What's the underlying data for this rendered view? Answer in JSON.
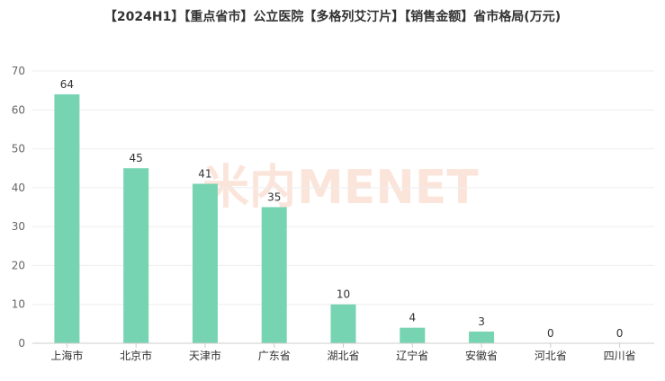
{
  "chart_data": {
    "type": "bar",
    "title": "【2024H1】【重点省市】公立医院【多格列艾汀片】【销售金额】省市格局(万元)",
    "categories": [
      "上海市",
      "北京市",
      "天津市",
      "广东省",
      "湖北省",
      "辽宁省",
      "安徽省",
      "河北省",
      "四川省"
    ],
    "values": [
      64,
      45,
      41,
      35,
      10,
      4,
      3,
      0,
      0
    ],
    "ylim": [
      0,
      70
    ],
    "yticks": [
      0,
      10,
      20,
      30,
      40,
      50,
      60,
      70
    ],
    "grid": true,
    "bar_color": "#76d4b2",
    "data_labels": true
  },
  "watermark": {
    "logo_text": "米内",
    "text": "MENET",
    "color": "#fbe3d6"
  }
}
